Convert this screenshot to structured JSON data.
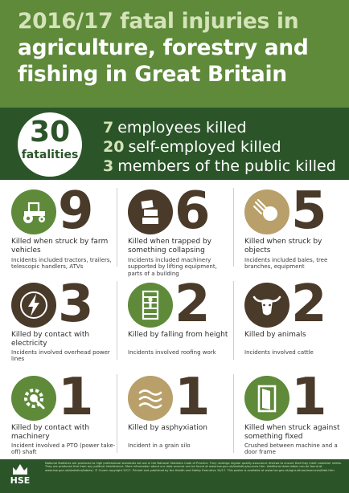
{
  "header": {
    "title_line1": "2016/17 fatal injuries in",
    "title_line2": "agriculture, forestry and",
    "title_line3": "fishing in Great Britain"
  },
  "summary": {
    "total_number": "30",
    "total_label": "fatalities",
    "rows": [
      {
        "number": "7",
        "text": "employees killed"
      },
      {
        "number": "20",
        "text": "self-employed killed"
      },
      {
        "number": "3",
        "text": "members of the public killed"
      }
    ]
  },
  "causes": [
    {
      "icon": "tractor-icon",
      "number": "9",
      "label": "Killed when struck by farm vehicles",
      "detail": "Incidents included tractors, trailers, telescopic handlers, ATVs"
    },
    {
      "icon": "collapsing-structure-icon",
      "number": "6",
      "label": "Killed when trapped by something collapsing",
      "detail": "Incidents included machinery supported by lifting equipment, parts of a building"
    },
    {
      "icon": "falling-object-icon",
      "number": "5",
      "label": "Killed when struck by objects",
      "detail": "Incidents included bales, tree branches, equipment"
    },
    {
      "icon": "electricity-icon",
      "number": "3",
      "label": "Killed by contact with electricity",
      "detail": "Incidents involved overhead power lines"
    },
    {
      "icon": "ladder-fall-icon",
      "number": "2",
      "label": "Killed by falling from height",
      "detail": "Incidents involved roofing work"
    },
    {
      "icon": "bull-icon",
      "number": "2",
      "label": "Killed by animals",
      "detail": "Incidents involved cattle"
    },
    {
      "icon": "machinery-gear-icon",
      "number": "1",
      "label": "Killed by contact with machinery",
      "detail": "Incident involved a PTO (power take-off) shaft"
    },
    {
      "icon": "asphyxiation-icon",
      "number": "1",
      "label": "Killed by asphyxiation",
      "detail": "Incident in a grain silo"
    },
    {
      "icon": "door-frame-icon",
      "number": "1",
      "label": "Killed when struck against something fixed",
      "detail": "Crushed between machine and a door frame"
    }
  ],
  "footer": {
    "logo_text": "HSE",
    "fine_print": "National Statistics are produced to high professional standards set out in the National Statistics Code of Practice. They undergo regular quality assurance reviews to ensure that they meet customer needs. They are produced free from any political interference. More information about our data sources can be found at www.hse.gov.uk/statistics/sources.htm. Additional data tables can be found at www.hse.gov.uk/statistics/tables/. © Crown copyright 2017. Printed and published by the Health and Safety Executive 10/17. This poster is available at www.hse.gov.uk/agriculture/resources/fatal.htm"
  },
  "colors": {
    "header_green": "#5e8a3a",
    "dark_green": "#2b5529",
    "light_green_text": "#d4e3b8",
    "tan": "#b9a06a",
    "dark_brown": "#4a3a2a"
  }
}
